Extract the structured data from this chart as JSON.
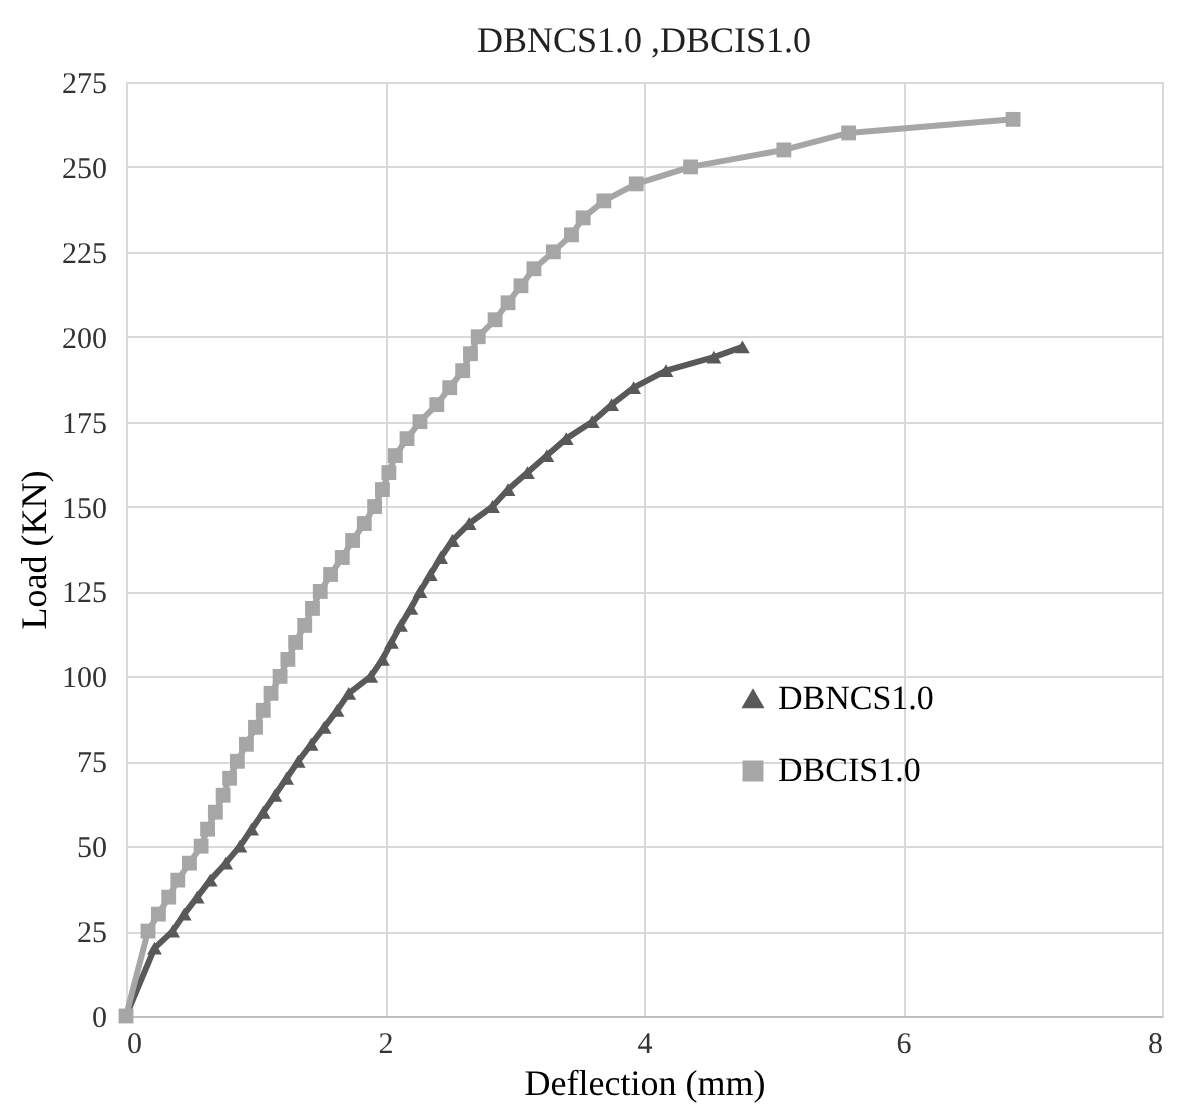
{
  "chart_data": {
    "type": "line",
    "title": "DBNCS1.0 ,DBCIS1.0",
    "xlabel": "Deflection (mm)",
    "ylabel": "Load (KN)",
    "xlim": [
      0,
      8
    ],
    "xticks": [
      0,
      2,
      4,
      6,
      8
    ],
    "ylim": [
      0,
      275
    ],
    "yticks": [
      0,
      25,
      50,
      75,
      100,
      125,
      150,
      175,
      200,
      225,
      250,
      275
    ],
    "grid": true,
    "legend": "bottom right",
    "line_style": "solid",
    "series": [
      {
        "name": "DBNCS1.0",
        "color": "#595959",
        "marker": "triangle",
        "x": [
          0,
          0.22,
          0.36,
          0.45,
          0.55,
          0.65,
          0.77,
          0.88,
          0.97,
          1.06,
          1.15,
          1.24,
          1.33,
          1.43,
          1.53,
          1.63,
          1.72,
          1.89,
          1.98,
          2.05,
          2.12,
          2.2,
          2.27,
          2.35,
          2.43,
          2.52,
          2.65,
          2.83,
          2.95,
          3.1,
          3.25,
          3.4,
          3.6,
          3.75,
          3.92,
          4.17,
          4.54,
          4.76
        ],
        "values": [
          0,
          20,
          25,
          30,
          35,
          40,
          45,
          50,
          55,
          60,
          65,
          70,
          75,
          80,
          85,
          90,
          95,
          100,
          105,
          110,
          115,
          120,
          125,
          130,
          135,
          140,
          145,
          150,
          155,
          160,
          165,
          170,
          175,
          180,
          185,
          190,
          194,
          197
        ]
      },
      {
        "name": "DBCIS1.0",
        "color": "#a6a6a6",
        "marker": "square",
        "x": [
          0,
          0.17,
          0.25,
          0.33,
          0.4,
          0.49,
          0.58,
          0.63,
          0.69,
          0.75,
          0.8,
          0.86,
          0.93,
          1.0,
          1.06,
          1.12,
          1.19,
          1.25,
          1.31,
          1.38,
          1.44,
          1.5,
          1.58,
          1.67,
          1.75,
          1.84,
          1.92,
          1.98,
          2.03,
          2.08,
          2.17,
          2.27,
          2.4,
          2.5,
          2.6,
          2.66,
          2.72,
          2.85,
          2.95,
          3.05,
          3.15,
          3.3,
          3.44,
          3.53,
          3.69,
          3.94,
          4.36,
          5.08,
          5.58,
          6.85
        ],
        "values": [
          0,
          25,
          30,
          35,
          40,
          45,
          50,
          55,
          60,
          65,
          70,
          75,
          80,
          85,
          90,
          95,
          100,
          105,
          110,
          115,
          120,
          125,
          130,
          135,
          140,
          145,
          150,
          155,
          160,
          165,
          170,
          175,
          180,
          185,
          190,
          195,
          200,
          205,
          210,
          215,
          220,
          225,
          230,
          235,
          240,
          245,
          250,
          255,
          260,
          264
        ]
      }
    ]
  }
}
